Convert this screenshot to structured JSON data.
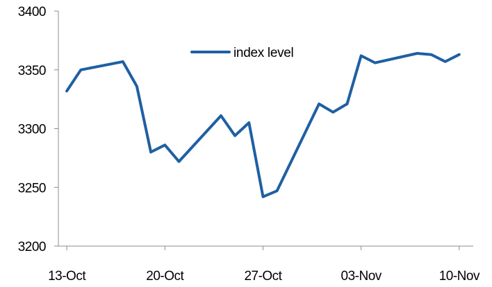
{
  "chart_data": {
    "type": "line",
    "title": "",
    "xlabel": "",
    "ylabel": "",
    "x_tick_labels": [
      "13-Oct",
      "20-Oct",
      "27-Oct",
      "03-Nov",
      "10-Nov"
    ],
    "x_tick_days": [
      0,
      7,
      14,
      21,
      28
    ],
    "y_ticks": [
      3200,
      3250,
      3300,
      3350,
      3400
    ],
    "ylim": [
      3200,
      3400
    ],
    "xlim_days": [
      -0.6,
      29
    ],
    "grid": false,
    "legend": "top-center",
    "series": [
      {
        "name": "index level",
        "color": "#1f5fa3",
        "points": [
          {
            "day": 0,
            "value": 3332
          },
          {
            "day": 1,
            "value": 3350
          },
          {
            "day": 4,
            "value": 3357
          },
          {
            "day": 5,
            "value": 3336
          },
          {
            "day": 6,
            "value": 3280
          },
          {
            "day": 7,
            "value": 3286
          },
          {
            "day": 8,
            "value": 3272
          },
          {
            "day": 11,
            "value": 3311
          },
          {
            "day": 12,
            "value": 3294
          },
          {
            "day": 13,
            "value": 3305
          },
          {
            "day": 14,
            "value": 3242
          },
          {
            "day": 15,
            "value": 3247
          },
          {
            "day": 18,
            "value": 3321
          },
          {
            "day": 19,
            "value": 3314
          },
          {
            "day": 20,
            "value": 3321
          },
          {
            "day": 21,
            "value": 3362
          },
          {
            "day": 22,
            "value": 3356
          },
          {
            "day": 25,
            "value": 3364
          },
          {
            "day": 26,
            "value": 3363
          },
          {
            "day": 27,
            "value": 3357
          },
          {
            "day": 28,
            "value": 3363
          }
        ]
      }
    ]
  }
}
